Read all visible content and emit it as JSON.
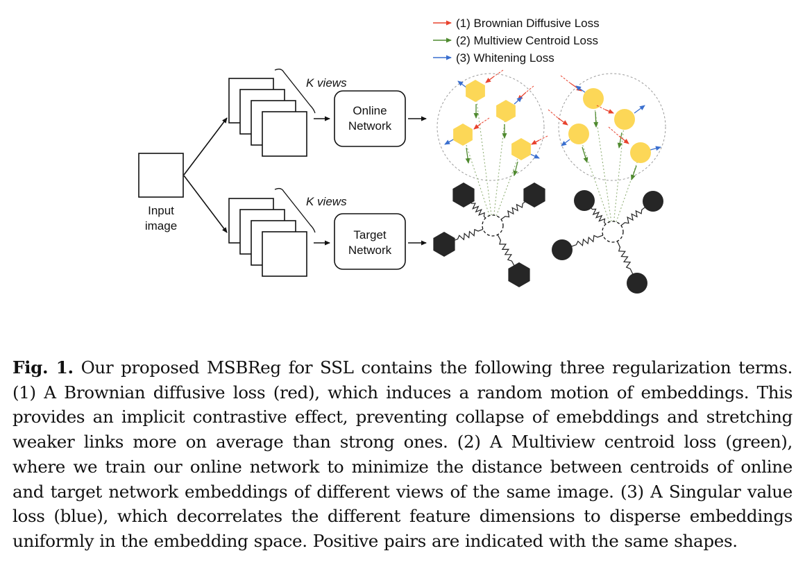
{
  "figure": {
    "input_label_line1": "Input",
    "input_label_line2": "image",
    "views_label_top": "K views",
    "views_label_bottom": "K views",
    "online_line1": "Online",
    "online_line2": "Network",
    "target_line1": "Target",
    "target_line2": "Network",
    "legend": [
      {
        "text": "(1) Brownian Diffusive Loss",
        "color": "#e8432e"
      },
      {
        "text": "(2) Multiview Centroid Loss",
        "color": "#4f8a2f"
      },
      {
        "text": "(3) Whitening Loss",
        "color": "#3a6fcf"
      }
    ],
    "colors": {
      "hexagon": "#fcd757",
      "dark": "#262626",
      "red": "#e8432e",
      "green": "#4f8a2f",
      "blue": "#3a6fcf"
    }
  },
  "caption": {
    "label": "Fig. 1.",
    "text": "Our proposed MSBReg for SSL contains the following three regularization terms. (1) A Brownian diffusive loss (red), which induces a random motion of embeddings. This provides an implicit contrastive effect, preventing collapse of emebddings and stretching weaker links more on average than strong ones. (2) A Multiview centroid loss (green), where we train our online network to minimize the distance between centroids of online and target network embeddings of different views of the same image. (3) A Singular value loss (blue), which decorrelates the different feature dimensions to disperse embeddings uniformly in the embedding space. Positive pairs are indicated with the same shapes."
  }
}
